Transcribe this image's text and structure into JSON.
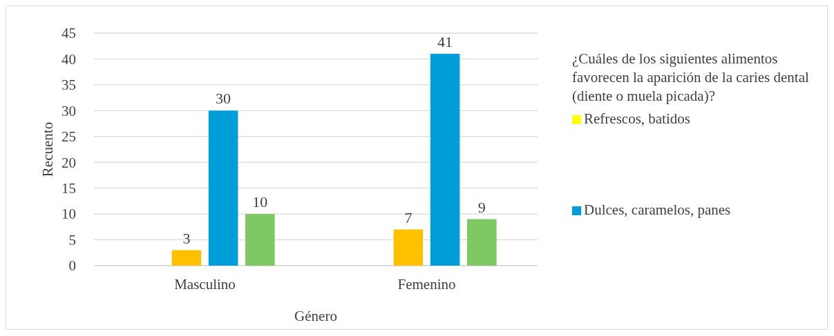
{
  "chart_data": {
    "type": "bar",
    "xlabel": "Género",
    "ylabel": "Recuento",
    "legend_title": "¿Cuáles de los siguientes alimentos favorecen la aparición de la caries dental (diente o muela picada)?",
    "categories": [
      "Masculino",
      "Femenino"
    ],
    "series": [
      {
        "name": "Refrescos, batidos",
        "color": "#ffff00",
        "values": [
          null,
          null
        ]
      },
      {
        "color": "#ffc000",
        "values": [
          3,
          7
        ]
      },
      {
        "name": "Dulces, caramelos, panes",
        "color": "#009ed8",
        "values": [
          30,
          41
        ]
      },
      {
        "color": "#7ec963",
        "values": [
          10,
          9
        ]
      }
    ],
    "ylim": [
      0,
      45
    ],
    "yticks": [
      0,
      5,
      10,
      15,
      20,
      25,
      30,
      35,
      40,
      45
    ],
    "grid": "y",
    "legend": "right",
    "data_labels": true
  }
}
